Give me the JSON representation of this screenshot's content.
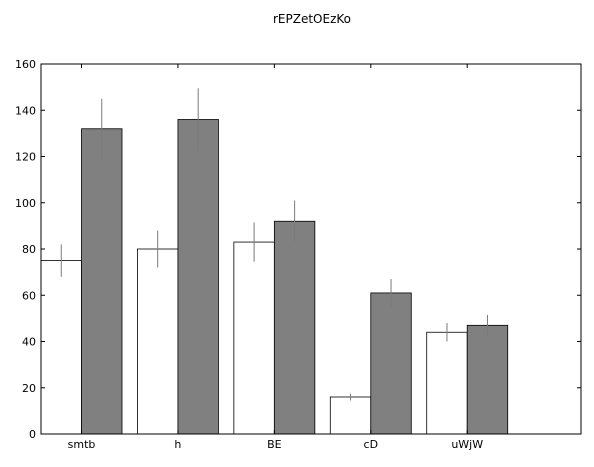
{
  "chart_data": {
    "type": "bar",
    "title": "rEPZetOEzKo",
    "xlabel": "",
    "ylabel": "",
    "categories": [
      "smtb",
      "h",
      "BE",
      "cD",
      "uWjW"
    ],
    "ylim": [
      0,
      160
    ],
    "yticks": [
      0,
      20,
      40,
      60,
      80,
      100,
      120,
      140,
      160
    ],
    "grid": false,
    "legend": "none",
    "series": [
      {
        "values": [
          75,
          80,
          83,
          16,
          44
        ],
        "errors": [
          7,
          8,
          8.5,
          1.5,
          4
        ],
        "color": "#ffffff"
      },
      {
        "values": [
          132,
          136,
          92,
          61,
          47
        ],
        "errors": [
          13,
          13.5,
          9,
          6,
          4.5
        ],
        "color": "#808080"
      }
    ]
  }
}
